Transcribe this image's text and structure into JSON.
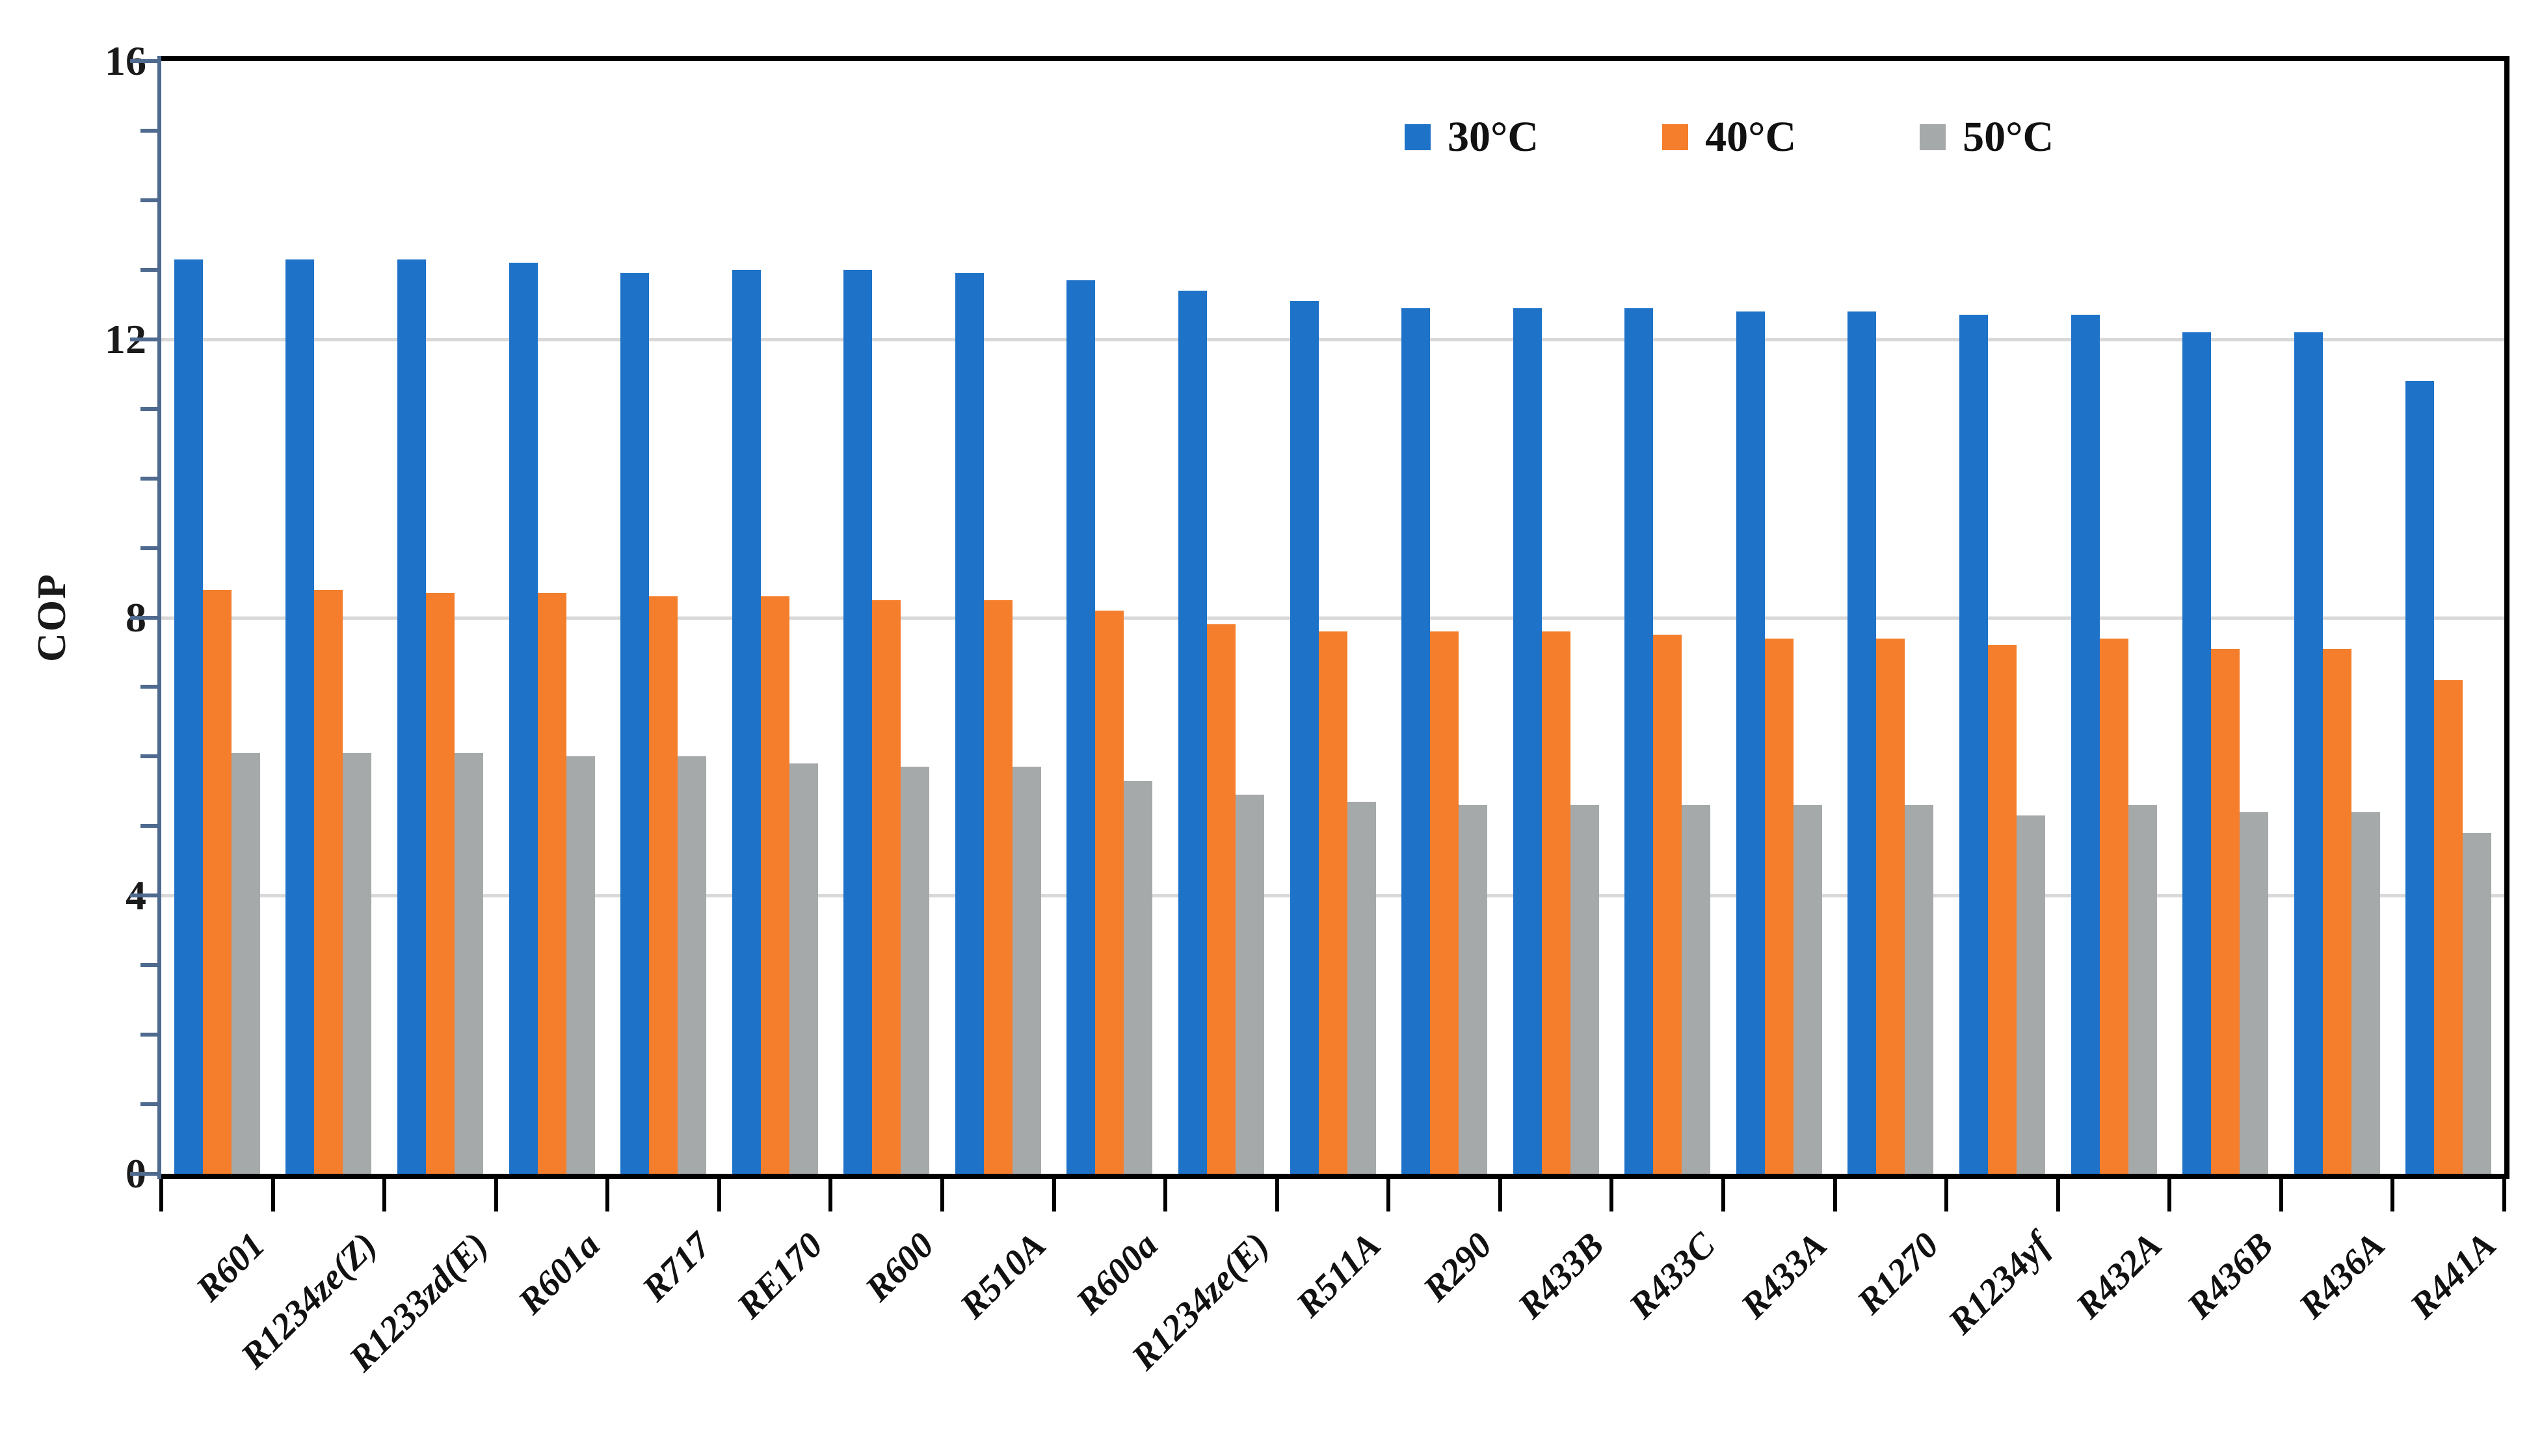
{
  "chart_data": {
    "type": "bar",
    "grouped": true,
    "title": "",
    "xlabel": "",
    "ylabel": "COP",
    "ylim": [
      0,
      16
    ],
    "yticks": [
      0,
      4,
      8,
      12,
      16
    ],
    "y_minor_unit": 1,
    "gridlines": [
      4,
      8,
      12
    ],
    "grid": "horizontal-major-only",
    "legend_position": "top-right-inside",
    "categories": [
      "R601",
      "R1234ze(Z)",
      "R1233zd(E)",
      "R601a",
      "R717",
      "RE170",
      "R600",
      "R510A",
      "R600a",
      "R1234ze(E)",
      "R511A",
      "R290",
      "R433B",
      "R433C",
      "R433A",
      "R1270",
      "R1234yf",
      "R432A",
      "R436B",
      "R436A",
      "R441A"
    ],
    "series": [
      {
        "name": "30°C",
        "color": "#1e72c8",
        "values": [
          13.15,
          13.15,
          13.15,
          13.1,
          12.95,
          13.0,
          13.0,
          12.95,
          12.85,
          12.7,
          12.55,
          12.45,
          12.45,
          12.45,
          12.4,
          12.4,
          12.35,
          12.35,
          12.1,
          12.1,
          11.4
        ]
      },
      {
        "name": "40°C",
        "color": "#f47e2b",
        "values": [
          8.4,
          8.4,
          8.35,
          8.35,
          8.3,
          8.3,
          8.25,
          8.25,
          8.1,
          7.9,
          7.8,
          7.8,
          7.8,
          7.75,
          7.7,
          7.7,
          7.6,
          7.7,
          7.55,
          7.55,
          7.1
        ]
      },
      {
        "name": "50°C",
        "color": "#a6a9a9",
        "values": [
          6.05,
          6.05,
          6.05,
          6.0,
          6.0,
          5.9,
          5.85,
          5.85,
          5.65,
          5.45,
          5.35,
          5.3,
          5.3,
          5.3,
          5.3,
          5.3,
          5.15,
          5.3,
          5.2,
          5.2,
          4.9
        ]
      }
    ],
    "colors": {
      "gridline": "#d8d8d8",
      "y_axis": "#4f6a8f",
      "x_axis": "#000000",
      "plot_border": "#000000",
      "background": "#ffffff"
    }
  }
}
